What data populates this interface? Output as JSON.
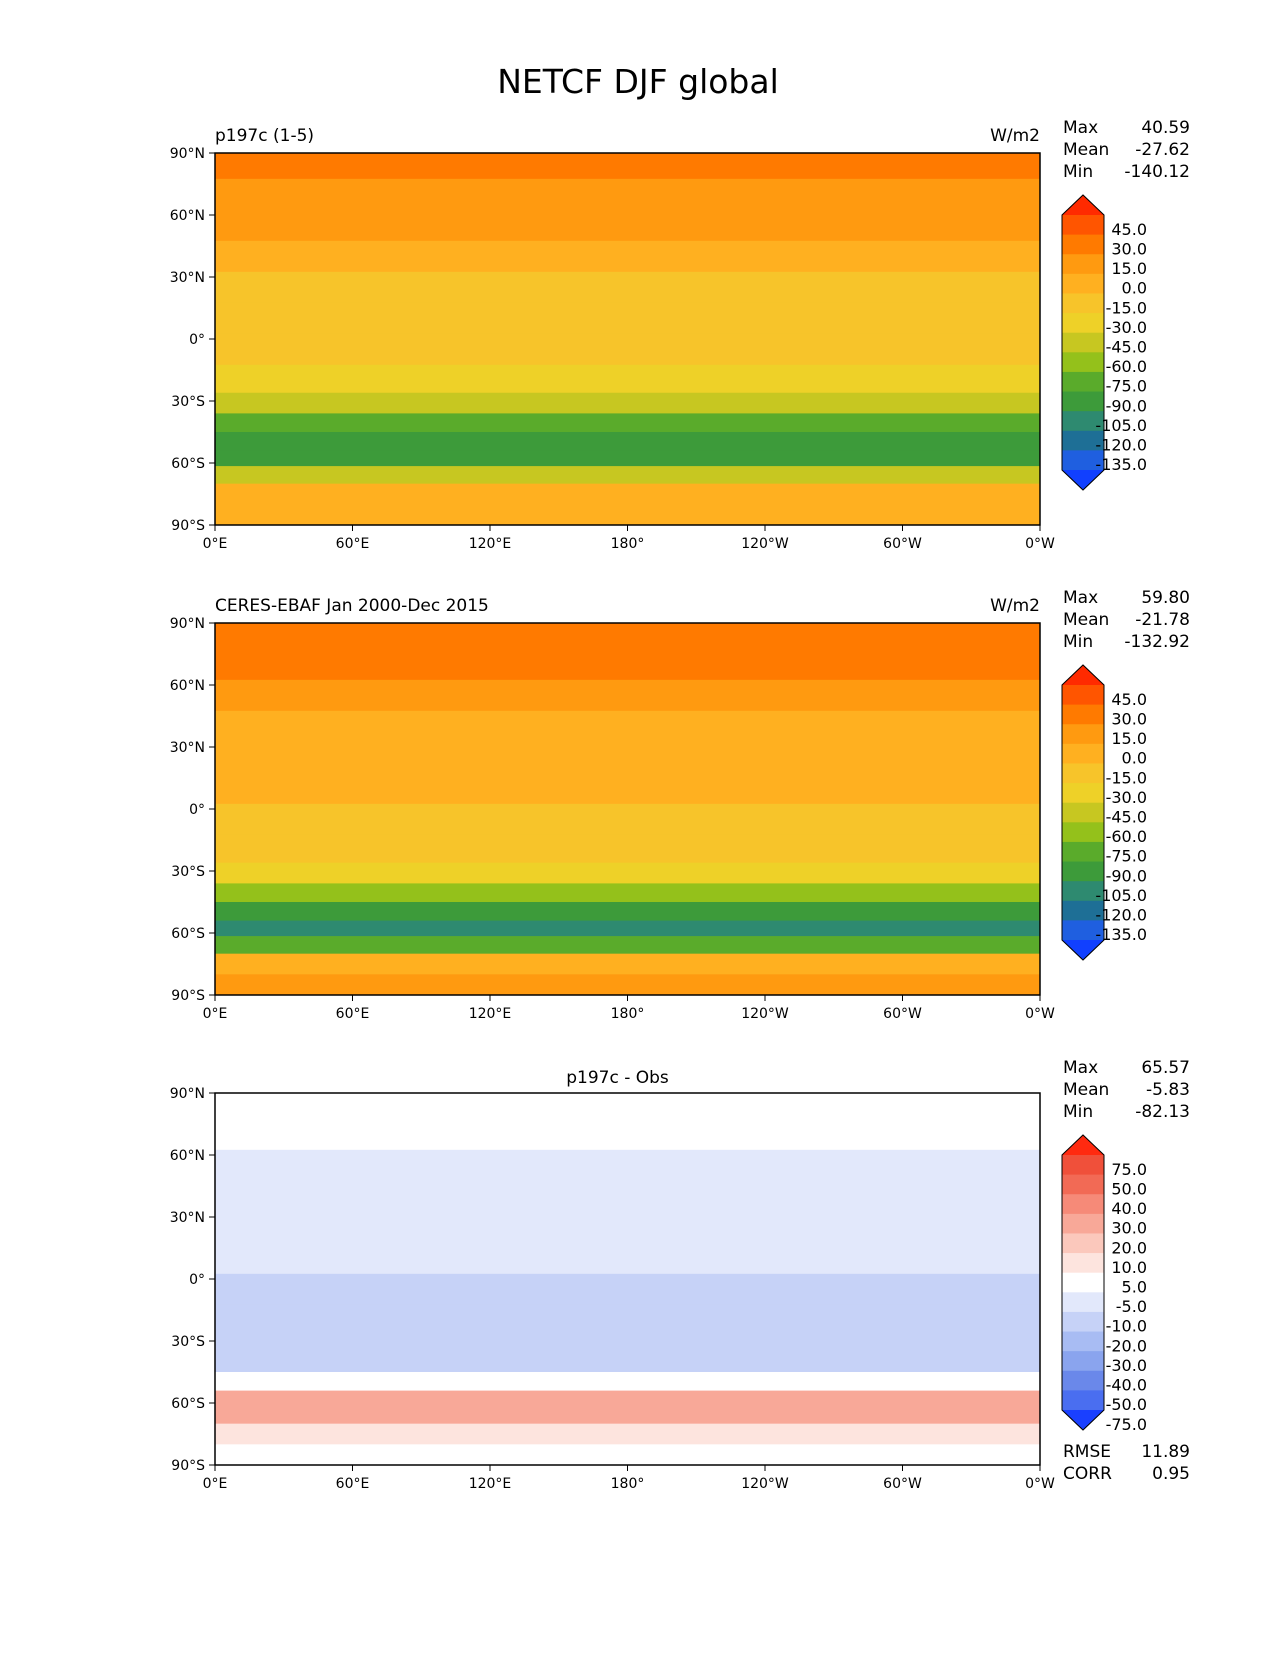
{
  "figure_title": "NETCF DJF global",
  "chart_data": [
    {
      "type": "heatmap",
      "left_title": "p197c (1-5)",
      "center_title": "",
      "units": "W/m2",
      "stats": {
        "max": "40.59",
        "mean": "-27.62",
        "min": "-140.12"
      },
      "x_ticks": [
        "0°E",
        "60°E",
        "120°E",
        "180°",
        "120°W",
        "60°W",
        "0°W"
      ],
      "y_ticks": [
        "90°N",
        "60°N",
        "30°N",
        "0°",
        "30°S",
        "60°S",
        "90°S"
      ],
      "xlim": [
        0,
        360
      ],
      "ylim": [
        -90,
        90
      ],
      "colorbar_levels": [
        "45.0",
        "30.0",
        "15.0",
        "0.0",
        "-15.0",
        "-30.0",
        "-45.0",
        "-60.0",
        "-75.0",
        "-90.0",
        "-105.0",
        "-120.0",
        "-135.0"
      ],
      "colorbar_colors": [
        "#ff2a00",
        "#ff5500",
        "#ff7a00",
        "#ff9a10",
        "#ffb020",
        "#f7c42a",
        "#eed128",
        "#c7c721",
        "#94c11b",
        "#5aab2b",
        "#3d9b3a",
        "#2e8a70",
        "#1e6f96",
        "#1f5fe0",
        "#1140ff"
      ],
      "zonal_profile": [
        {
          "lat": 85,
          "value": 20
        },
        {
          "lat": 70,
          "value": 10
        },
        {
          "lat": 55,
          "value": 0
        },
        {
          "lat": 40,
          "value": -12
        },
        {
          "lat": 25,
          "value": -22
        },
        {
          "lat": 10,
          "value": -25
        },
        {
          "lat": -5,
          "value": -28
        },
        {
          "lat": -20,
          "value": -35
        },
        {
          "lat": -32,
          "value": -60
        },
        {
          "lat": -40,
          "value": -90
        },
        {
          "lat": -50,
          "value": -105
        },
        {
          "lat": -58,
          "value": -100
        },
        {
          "lat": -65,
          "value": -60
        },
        {
          "lat": -75,
          "value": -10
        },
        {
          "lat": -85,
          "value": -5
        }
      ]
    },
    {
      "type": "heatmap",
      "left_title": "CERES-EBAF Jan 2000-Dec 2015",
      "center_title": "",
      "units": "W/m2",
      "stats": {
        "max": "59.80",
        "mean": "-21.78",
        "min": "-132.92"
      },
      "x_ticks": [
        "0°E",
        "60°E",
        "120°E",
        "180°",
        "120°W",
        "60°W",
        "0°W"
      ],
      "y_ticks": [
        "90°N",
        "60°N",
        "30°N",
        "0°",
        "30°S",
        "60°S",
        "90°S"
      ],
      "xlim": [
        0,
        360
      ],
      "ylim": [
        -90,
        90
      ],
      "colorbar_levels": [
        "45.0",
        "30.0",
        "15.0",
        "0.0",
        "-15.0",
        "-30.0",
        "-45.0",
        "-60.0",
        "-75.0",
        "-90.0",
        "-105.0",
        "-120.0",
        "-135.0"
      ],
      "colorbar_colors": [
        "#ff2a00",
        "#ff5500",
        "#ff7a00",
        "#ff9a10",
        "#ffb020",
        "#f7c42a",
        "#eed128",
        "#c7c721",
        "#94c11b",
        "#5aab2b",
        "#3d9b3a",
        "#2e8a70",
        "#1e6f96",
        "#1f5fe0",
        "#1140ff"
      ],
      "zonal_profile": [
        {
          "lat": 85,
          "value": 25
        },
        {
          "lat": 70,
          "value": 15
        },
        {
          "lat": 55,
          "value": 5
        },
        {
          "lat": 40,
          "value": -5
        },
        {
          "lat": 25,
          "value": -12
        },
        {
          "lat": 10,
          "value": -15
        },
        {
          "lat": -5,
          "value": -18
        },
        {
          "lat": -20,
          "value": -22
        },
        {
          "lat": -32,
          "value": -40
        },
        {
          "lat": -40,
          "value": -70
        },
        {
          "lat": -50,
          "value": -105
        },
        {
          "lat": -58,
          "value": -115
        },
        {
          "lat": -65,
          "value": -80
        },
        {
          "lat": -75,
          "value": -5
        },
        {
          "lat": -85,
          "value": 0
        }
      ]
    },
    {
      "type": "heatmap",
      "left_title": "",
      "center_title": "p197c - Obs",
      "units": "",
      "stats": {
        "max": "65.57",
        "mean": "-5.83",
        "min": "-82.13"
      },
      "metrics": {
        "rmse": "11.89",
        "corr": "0.95"
      },
      "x_ticks": [
        "0°E",
        "60°E",
        "120°E",
        "180°",
        "120°W",
        "60°W",
        "0°W"
      ],
      "y_ticks": [
        "90°N",
        "60°N",
        "30°N",
        "0°",
        "30°S",
        "60°S",
        "90°S"
      ],
      "xlim": [
        0,
        360
      ],
      "ylim": [
        -90,
        90
      ],
      "colorbar_levels": [
        "75.0",
        "50.0",
        "40.0",
        "30.0",
        "20.0",
        "10.0",
        "5.0",
        "-5.0",
        "-10.0",
        "-20.0",
        "-30.0",
        "-40.0",
        "-50.0",
        "-75.0"
      ],
      "colorbar_colors": [
        "#ff2a10",
        "#f0503a",
        "#f26a55",
        "#f68a78",
        "#f8a898",
        "#fbc8bc",
        "#fde4de",
        "#ffffff",
        "#e2e8fb",
        "#c6d2f7",
        "#a8bcf3",
        "#8aa4ee",
        "#6a88ea",
        "#4a6ef0",
        "#1a40ff"
      ],
      "zonal_profile": [
        {
          "lat": 85,
          "value": 0
        },
        {
          "lat": 70,
          "value": -3
        },
        {
          "lat": 55,
          "value": -8
        },
        {
          "lat": 40,
          "value": -8
        },
        {
          "lat": 25,
          "value": -10
        },
        {
          "lat": 10,
          "value": -8
        },
        {
          "lat": -5,
          "value": -12
        },
        {
          "lat": -20,
          "value": -12
        },
        {
          "lat": -32,
          "value": -12
        },
        {
          "lat": -40,
          "value": -15
        },
        {
          "lat": -50,
          "value": 0
        },
        {
          "lat": -58,
          "value": 20
        },
        {
          "lat": -65,
          "value": 25
        },
        {
          "lat": -75,
          "value": 5
        },
        {
          "lat": -85,
          "value": 0
        }
      ]
    }
  ]
}
